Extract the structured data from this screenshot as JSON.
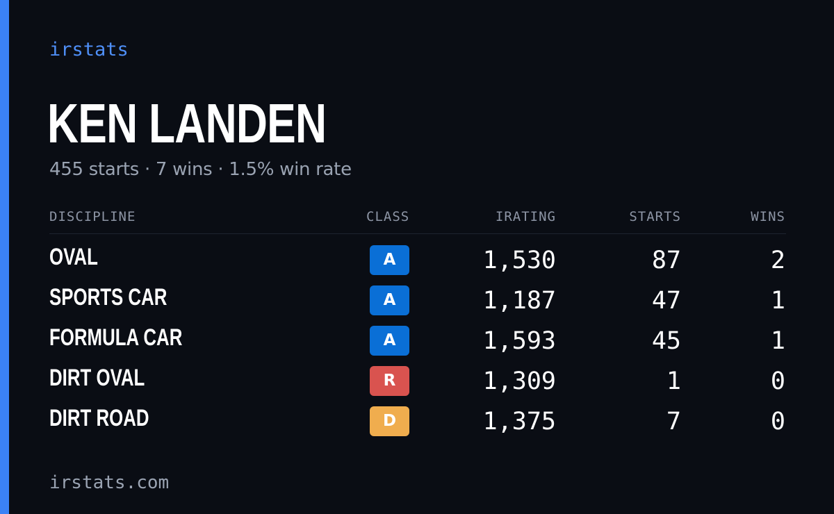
{
  "brand": "irstats",
  "driver_name": "KEN LANDEN",
  "summary": "455 starts · 7 wins · 1.5% win rate",
  "table": {
    "headers": {
      "discipline": "DISCIPLINE",
      "class": "CLASS",
      "irating": "IRATING",
      "starts": "STARTS",
      "wins": "WINS"
    },
    "rows": [
      {
        "discipline": "OVAL",
        "class": "A",
        "class_color": "#0a6fd6",
        "irating": "1,530",
        "starts": "87",
        "wins": "2"
      },
      {
        "discipline": "SPORTS CAR",
        "class": "A",
        "class_color": "#0a6fd6",
        "irating": "1,187",
        "starts": "47",
        "wins": "1"
      },
      {
        "discipline": "FORMULA CAR",
        "class": "A",
        "class_color": "#0a6fd6",
        "irating": "1,593",
        "starts": "45",
        "wins": "1"
      },
      {
        "discipline": "DIRT OVAL",
        "class": "R",
        "class_color": "#d9534f",
        "irating": "1,309",
        "starts": "1",
        "wins": "0"
      },
      {
        "discipline": "DIRT ROAD",
        "class": "D",
        "class_color": "#f0ad4e",
        "irating": "1,375",
        "starts": "7",
        "wins": "0"
      }
    ]
  },
  "footer": "irstats.com",
  "colors": {
    "accent": "#3b82f6",
    "background": "#0a0d14"
  }
}
